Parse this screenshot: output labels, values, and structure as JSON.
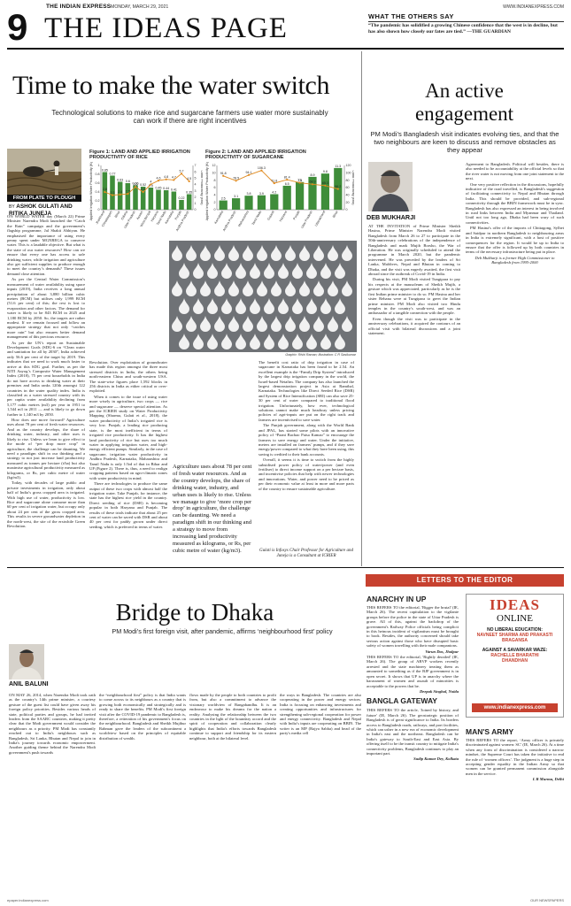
{
  "masthead": {
    "paper_name": "THE INDIAN EXPRESS",
    "date": "MONDAY, MARCH 29, 2021",
    "website": "WWW.INDIANEXPRESS.COM",
    "page_number": "9",
    "section_title": "THE IDEAS PAGE"
  },
  "others_say": {
    "heading": "WHAT THE OTHERS SAY",
    "quote": "“The pandemic has solidified a growing Chinese confidence that the west is in decline, but has also shown how closely our fates are tied.”",
    "source": "—THE GUARDIAN"
  },
  "lead": {
    "headline": "Time to make the water switch",
    "standfirst": "Technological solutions to make rice and sugarcane farmers use water more sustainably can work if there are right incentives",
    "kicker": "FROM PLATE TO PLOUGH",
    "byline_prefix": "BY",
    "authors_line1": "ASHOK GULATI AND",
    "authors_line2": "RITIKA JUNEJA",
    "graphic_credit": "Graphic: Rishi Raman; Illustration: C R Sasikumar",
    "pull_quote": "Agriculture uses about 78 per cent of fresh water resources. And as the country develops, the share of drinking water, industry, and urban uses is likely to rise. Unless we manage to give ‘more crop per drop’ in agriculture, the challenge can be daunting. We need a paradigm shift in our thinking and a strategy to move from increasing land productivity measured as kilograms, or Rs, per cubic metre of water (kg/m3).",
    "col1": [
      "ON WORLD WATER day (March 22) Prime Minister Narendra Modi launched the “Catch the Rain” campaign and the government’s flagship programme, Jal Shakti Abhiyan. He emphasised the importance of using every penny spent under MGNREGA to conserve water. This is a laudable objective. But what is the state of our water resources? How can we ensure that every one has access to safe drinking water, while irrigation and agriculture also get sufficient supplies to produce enough to meet the country’s demands? These issues demand close attention.",
      "As per the Central Water Commission’s measurement of water availability using space inputs (2019), India receives a long annual precipitation of about 3,880 billion cubic metres (BCM) but utilises only 1,999 BCM (51.6 per cent) of this; the rest is lost to evaporation and other factors. The demand for water is likely to be 843 BCM in 2025 and 1,180 BCM by 2050. So, the targets are rather modest. If we remain focused and follow an appropriate strategy that not only “catches more rain” but also ensures better demand management of this precious resource.",
      "As per the UN’s report on Sustainable Development Goals (SDG-6 on “Clean water and sanitation for all by 2030”, India achieved only 56.6 per cent of the target by 2019. This indicates that we need to work much faster to arrive at this SDG goal. Further, as per the NITI Aayog’s Composite Water Management Index (2018), 75 per cent households in India do not have access to drinking water at their premises and India ranks 120th amongst 122 countries in the water quality index. India is classified as a water stressed country with its per capita water availability declining from 5,177 cubic metres (m3) per year in 1951 to 1,544 m3 in 2011 — and is likely to go down further to 1,140 m3 by 2050.",
      "How does one move forward? Agriculture uses about 78 per cent of fresh water resources. And as the country develops, the share of drinking water, industry, and other uses is likely to rise. Unless we learn to give effect to the mode of “per drop more crop” in agriculture, the challenge can be daunting. We need a paradigm shift in our thinking and a strategy to not just increase land productivity measured as tonnes per hectare (t/ha) but also maximise agricultural productivity measured as kilograms, or Rs, per cubic metre of water (kg/m3).",
      "Today, with decades of large public and private investments in irrigation, only about half of India’s gross cropped area is irrigated. With high use of water, productivity is low. Rice and sugarcane alone consume more than 60 per cent of irrigation water, but occupy only about 24 per cent of the gross cropped area. This results in severe groundwater depletion in the north-west, the site of the erstwhile Green Revolution."
    ],
    "col2": [
      "Revolution. Over exploitation of groundwater has made this region amongst the three most stressed districts in India, the others being north-eastern China and south-western USA. The state-wise figures place 1,592 blocks in 256 districts in India as either critical or over-exploited.",
      "When it comes to the issue of using water more wisely in agriculture, two crops — rice and sugarcane — deserve special attention. As per the ICRIER study on Water Productivity Mapping (Sharma, Gulati et al., 2018), the water productivity of India’s irrigated rice is very low. Punjab, a leading rice producing state, is the most inefficient in terms of irrigated rice productivity. It has the highest land productivity of rice but uses too much water in applying irrigation water, and high-energy efficient pumps. Similarly, in the case of sugarcane, irrigation water productivity in Andhra Pradesh, Karnataka, Maharashtra and Tamil Nadu is only 1/3rd of that in Bihar and UP (Figure 2). There is, thus, a need to realign cropping patterns based on agro-climatic zones with water productivity in mind.",
      "There are technologies to produce the same output of these two crops with almost half the irrigation water. Take Punjab, for instance, the state has the highest rice yield in the country. Direct seeding of rice (DSR) is becoming popular in both Haryana and Punjab. The results of these trials indicate that about 25 per cent of water can be saved with DSR and about 40 per cent for paddy grown under direct seeding, which is preferred in terms of water."
    ],
    "col4": [
      "The benefit cost ratio of drip irrigation in case of sugarcane in Karnataka has been found to be 2.54. An excellent example is the “Family Drip System” introduced by the largest drip irrigation company in the world, the Israel-based Netafim. The company has also launched the largest demonstration project in Asia at Ramthal, Karnataka. Technologies like Direct Seeded Rice (DSR) and System of Rice Intensification (SRI) can also save 25-30 per cent of water compared to traditional flood irrigation. Unfortunately, how ever, technological solutions cannot make much headway unless pricing policies of agri-inputs are put on the right track and farmers are incentivised to save water.",
      "The Punjab government, along with the World Bank and JPAL, has started some pilots with an innovative policy of “Paani Bachao Paisa Kamao” to encourage the farmers to save energy and water. Under the initiative, meters are installed on farmers’ pumps, and if they save energy/power compared to what they have been using, this saving is credited to their bank accounts.",
      "Overall, it seems it is time to switch from the highly subsidised power policy of water/power (and even fertiliser) to direct income support on a per hectare basis, and incentivise policies that help with newer technologies and innovations. Water, and power need to be priced as per their economic value at least in more and more parts of the country to ensure sustainable agriculture."
    ],
    "bio": "Gulati is Infosys Chair Professor for Agriculture and Juneja is a Consultant at ICRIER"
  },
  "figure1": {
    "title_line1": "Figure 1: LAND AND APPLIED IRRIGATION",
    "title_line2": "PRODUCTIVITY OF RICE",
    "left_axis_label": "Applied Irrigation Water Productivity (Kg/m3)",
    "right_axis_label": "Land Productivity (t/ha)"
  },
  "figure2": {
    "title_line1": "Figure 2: LAND AND APPLIED IRRIGATION",
    "title_line2": "PRODUCTIVITY OF SUGARCANE",
    "left_axis_label": "Applied Irrigation Water Productivity (Kg/m3)",
    "right_axis_label": "Land Productivity (t/ha)"
  },
  "chart_data": [
    {
      "type": "bar",
      "title": "Figure 1: LAND AND APPLIED IRRIGATION PRODUCTIVITY OF RICE",
      "categories": [
        "Jharkhand",
        "Chhattisgarh",
        "Bihar",
        "Odisha",
        "Uttar Pradesh",
        "Assam",
        "West Bengal",
        "Haryana",
        "Tamil Nadu",
        "Karnataka",
        "Punjab",
        "Andhra Pradesh"
      ],
      "series": [
        {
          "name": "Applied irrigation water productivity",
          "values": [
            0.85,
            0.77,
            0.63,
            0.6,
            0.55,
            0.52,
            0.5,
            0.45,
            0.44,
            0.41,
            0.22,
            0.35
          ]
        },
        {
          "name": "Land productivity",
          "values": [
            2.8,
            2.3,
            2.4,
            2.5,
            3.6,
            2.8,
            4.0,
            4.6,
            4.8,
            4.7,
            5.7,
            4.5
          ]
        }
      ],
      "ylabel": "Applied Irrigation Water Productivity (Kg/m3)",
      "y2label": "Land Productivity (t/ha)",
      "ylim": [
        0,
        1.0
      ],
      "y2lim": [
        0,
        7.0
      ],
      "legend": "none"
    },
    {
      "type": "bar",
      "title": "Figure 2: LAND AND APPLIED IRRIGATION PRODUCTIVITY OF SUGARCANE",
      "categories": [
        "Karnataka",
        "Andhra Pradesh",
        "Maharashtra",
        "Tamil Nadu",
        "Gujarat",
        "Haryana",
        "Punjab",
        "Uttar Pradesh",
        "Uttarakhand",
        "Bihar"
      ],
      "series": [
        {
          "name": "Applied irrigation water productivity",
          "values": [
            2.5,
            3.1,
            3.8,
            3.9,
            4.2,
            6.5,
            7.5,
            8.9,
            9.8,
            11.3
          ]
        },
        {
          "name": "Land productivity",
          "values": [
            91.8,
            78.5,
            94.1,
            106.3,
            71.8,
            81.4,
            73.0,
            68.9,
            65.3,
            56.2
          ]
        }
      ],
      "ylabel": "Applied Irrigation Water Productivity (Kg/m3)",
      "y2label": "Land Productivity (t/ha)",
      "ylim": [
        0,
        12
      ],
      "y2lim": [
        0,
        120
      ],
      "legend": "none"
    }
  ],
  "engagement": {
    "headline_line1": "An active",
    "headline_line2": "engagement",
    "standfirst": "PM Modi’s Bangladesh visit indicates evolving ties, and that the two neighbours are keen to discuss and remove obstacles as they appear",
    "author": "DEB MUKHARJI",
    "col1": [
      "AT THE INVITATION of Prime Minister Sheikh Hasina, Prime Minister Narendra Modi visited Bangladesh from March 26 to 27 to participate in the 50th-anniversary celebrations of the independence of Bangladesh and mark Mujib Borsho, the War of Liberation. He was originally scheduled to attend the programme in March 2020, but the pandemic intervened. He was preceded by the leaders of Sri Lanka, Maldives, Nepal and Bhutan in coming to Dhaka, and the visit was eagerly awaited, the first visit abroad since the outbreak of Covid-19 in India.",
      "During his visit, PM Modi visited Tungipara to pay his respects at the mausoleum of Sheikh Mujib, a gesture which was appreciated, particularly as he is the first Indian prime minister to do so. PM Hasina and her sister Rehana were at Tungipara to greet the Indian prime minister. PM Modi also visited two Hindu temples in the country's south-west, and was an ambassador of a tangible connection with the people.",
      "Even though the visit was to participate in the anniversary celebrations, it acquired the contours of an official visit with bilateral discussions and a joint statement."
    ],
    "col2": [
      "Agreement to Bangladesh. Political will besides, there is also needed to be accountability at the official levels so that the river water is not moving from one joint statement to the next.",
      "One very positive reflection in the discussions, hopefully indicative of the road travelled, is Bangladesh's suggestion of facilitating connectivity to Nepal and Bhutan through India. This should be provided, and sub-regional connectivity through the BBIN framework must be in sync. Bangladesh has also expressed an interest in being involved in road links between India and Myanmar and Thailand. Until not too long ago, Dhaka had been wary of such connectivities.",
      "PM Hasina's offer of the imports of Chittagong, Sylhet and Saidpur in northern Bangladesh to neighbouring areas in India is extremely significant, with a host of positive consequences for the region. It would be up to India to ensure that the offer is followed up by both countries in terms of the necessary infrastructure being put in place.",
      "Deb Mukharji is a former High Commissioner to Bangladesh from 1995-2000"
    ]
  },
  "bridge": {
    "headline": "Bridge to Dhaka",
    "standfirst": "PM Modi’s first foreign visit, after pandemic, affirms ‘neighbourhood first’ policy",
    "author": "ANIL BALUNI",
    "col1": "ON MAY 26, 2014, when Narendra Modi took oath as the country's 14th prime minister, a courtesy gesture of the guest list could have given away his foreign policy priorities. Besides various heads of state, political parties and groups, he had invited leaders from the SAARC countries, making it pretty clear that the Modi government would consider the neighbours as a priority. PM Modi has constantly reached out to India's neighbours such as Bangladesh, Sri Lanka, Bhutan and Nepal to join in India's journey towards economic empowerment. Another guiding theme behind the Narendra Modi government's push towards",
    "col2": "the “neighbourhood first” policy is that India wants to come across to its neighbours as a country that is growing both economically and strategically and is ready to share the benefits. PM Modi's first foreign visit after the COVID-19 pandemic to Bangladesh is, therefore, a reiteration of his government's focus on the neighbourhood. Bangladesh and Sheikh Mujibur Rahman gave the leaders of the subcontinent a worldview based on the principles of equitable distribution of wealth.",
    "col3": "flows made by the people to both countries to profit from, but also a commitment to advance the visionary worldview of Bangabandhu. It is an endeavour to make his dreams for the nation a reality. Analysing the relationship between the two countries in the light of the boundary accord and the spirit of cooperation and collaboration clearly highlights that India's efforts towards Bangladesh continue to support and friendship for its eastern neighbour, both at the bilateral level.",
    "col4": "the ways in Bangladesh. The countries are also cooperating in the power and energy sectors. India is focusing on enhancing investments and creating opportunities and infrastructures for strengthening sub-regional cooperation for power and energy connectivity. Bangladesh and Nepal with India’s inputs are cooperating on BBIN. The writer is an MP (Rajya Sabha) and head of the party's media cell"
  },
  "letters": {
    "heading": "LETTERS TO THE EDITOR",
    "letter1_title": "ANARCHY IN UP",
    "letter1_body": "THIS REFERS TO the editorial, 'Bigger the brutal' (IE, March 26). The recent capitulation to the vigilante groups before the police in the state of Uttar Pradesh is grave. All of this, against the backdrop of the government's Railway Police officials being complicit in this heinous incident of vigilantism must be brought to book. Besides, the authority concerned should take serious action against those who have disrupted basic safety of women travelling with their male companions.",
    "letter1_sign": "Varun Das, Jhalpur",
    "letter2_body": "THIS REFERS TO the editorial, 'Rightly derailed' (IE, March 26). The group of ABVP workers recently arrested and the state machinery treating them as amounted to something as if the BJP government is in open secret. It shows that UP is in anarchy where the harassment of women and assault of minorities is acceptable to the powers that be.",
    "letter2_sign": "Deepak Singhal, Noida",
    "letter3_title": "BANGLA GATEWAY",
    "letter3_body": "THIS REFERS TO the article, 'Joined by history, and future' (IE, March 26). The geostrategic position of Bangladesh is of great significance to India. Its borders access to Bangladesh roads, railways, and port facilities, which can usher in a new era of economic development in India's east and the northeast. Bangladesh can be India's gateway to South-East and East Asia. By offering itself to be the transit country to mitigate India's connectivity problems, Bangladesh continues to play an important part.",
    "letter3_sign": "Sudip Kumar Dey, Kolkata"
  },
  "sidebar": {
    "ideas_label": "IDEAS",
    "online_label": "ONLINE",
    "online_list": [
      {
        "lead": "NO LIBERAL EDUCATION:",
        "name": "NAVNEET SHARMA AND PRAKASTI BRAGANSA"
      },
      {
        "lead": "AGAINST A SAVARKAR WAZE:",
        "name": "RACHELLE BHARATHI",
        "place": "DHANDHAN"
      }
    ],
    "website_link": "www.indianexpress.com",
    "mans_army_title": "MAN'S ARMY",
    "mans_army_body": "THIS REFERS TO the report, ‘Army officer is privately discriminated against women: SC’ (IE, March 26). At a time when any form of discrimination is considered a narrow mindset, the Supreme Court has taken the initiative to end the rule of ‘women officers’. The judgment is a huge step in accepting gender equality in the Indian Army so that women can be granted permanent commission alongside men in the service.",
    "mans_army_sign": "L R Murmu, Delhi"
  },
  "footer": {
    "left": "epaper.indianexpress.com",
    "right": "OUR NEWSPAPERS"
  }
}
